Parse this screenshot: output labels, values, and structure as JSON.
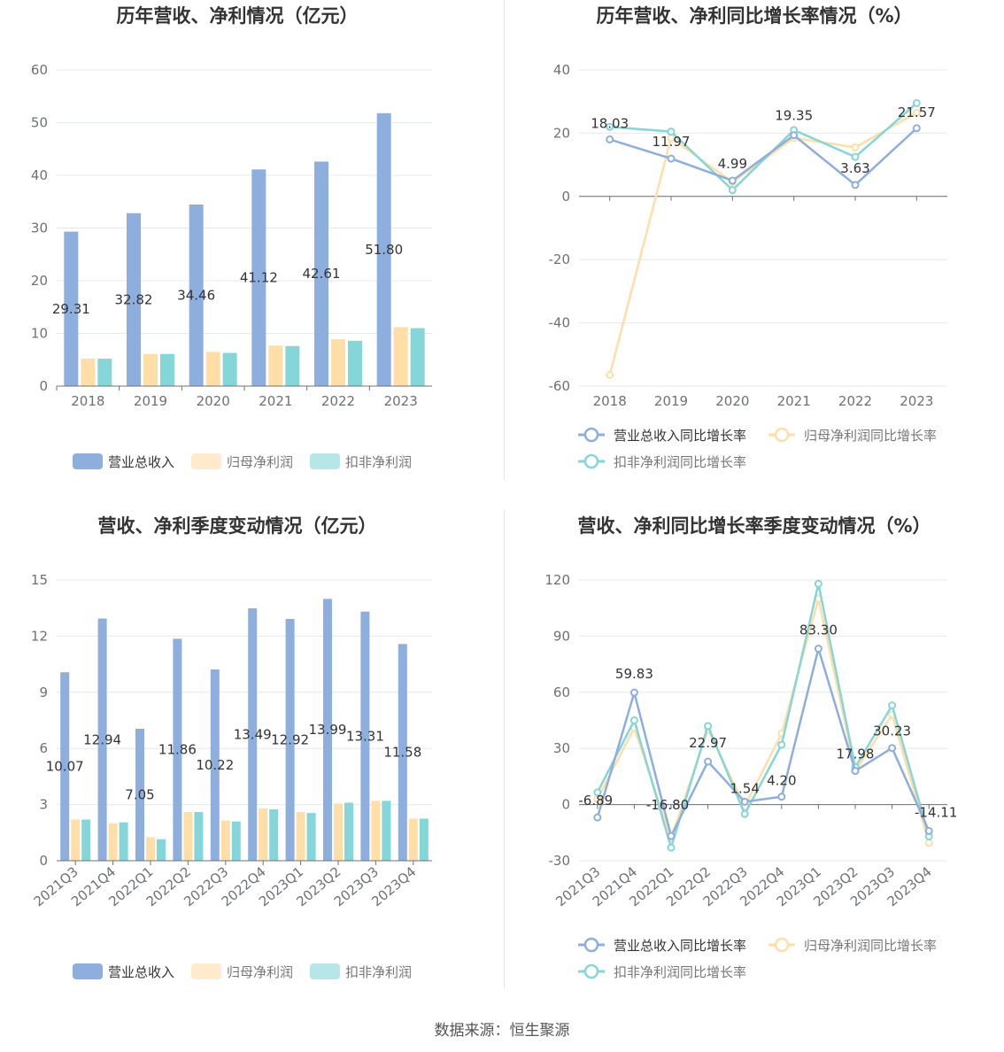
{
  "colors": {
    "revenue": "#8eaedd",
    "net_profit": "#ffdea8",
    "deducted_profit": "#85d6d8",
    "grid": "#e4e8f0",
    "axis": "#6e7079"
  },
  "source": "数据来源：恒生聚源",
  "chart_data": [
    {
      "type": "bar",
      "title": "历年营收、净利情况（亿元）",
      "categories": [
        "2018",
        "2019",
        "2020",
        "2021",
        "2022",
        "2023"
      ],
      "ylim": [
        0,
        60
      ],
      "yticks": [
        "0",
        "10",
        "20",
        "30",
        "40",
        "50",
        "60"
      ],
      "series": [
        {
          "name": "营业总收入",
          "values": [
            29.31,
            32.82,
            34.46,
            41.12,
            42.61,
            51.8
          ],
          "labels": [
            "29.31",
            "32.82",
            "34.46",
            "41.12",
            "42.61",
            "51.80"
          ]
        },
        {
          "name": "归母净利润",
          "values": [
            5.2,
            6.1,
            6.5,
            7.7,
            8.9,
            11.2
          ]
        },
        {
          "name": "扣非净利润",
          "values": [
            5.2,
            6.1,
            6.3,
            7.6,
            8.6,
            11.0
          ]
        }
      ],
      "legend": "bottom"
    },
    {
      "type": "line",
      "title": "历年营收、净利同比增长率情况（%）",
      "categories": [
        "2018",
        "2019",
        "2020",
        "2021",
        "2022",
        "2023"
      ],
      "ylim": [
        -60,
        40
      ],
      "yticks": [
        "-60",
        "-40",
        "-20",
        "0",
        "20",
        "40"
      ],
      "series": [
        {
          "name": "营业总收入同比增长率",
          "values": [
            18.03,
            11.97,
            4.99,
            19.35,
            3.63,
            21.57
          ],
          "labels": [
            "18.03",
            "11.97",
            "4.99",
            "19.35",
            "3.63",
            "21.57"
          ]
        },
        {
          "name": "归母净利润同比增长率",
          "values": [
            -56.5,
            18.5,
            4.5,
            18.5,
            15.5,
            26.5
          ]
        },
        {
          "name": "扣非净利润同比增长率",
          "values": [
            22.0,
            20.5,
            2.0,
            21.0,
            12.5,
            29.5
          ]
        }
      ],
      "legend": "bottom"
    },
    {
      "type": "bar",
      "title": "营收、净利季度变动情况（亿元）",
      "categories": [
        "2021Q3",
        "2021Q4",
        "2022Q1",
        "2022Q2",
        "2022Q3",
        "2022Q4",
        "2023Q1",
        "2023Q2",
        "2023Q3",
        "2023Q4"
      ],
      "ylim": [
        0,
        15
      ],
      "yticks": [
        "0",
        "3",
        "6",
        "9",
        "12",
        "15"
      ],
      "series": [
        {
          "name": "营业总收入",
          "values": [
            10.07,
            12.94,
            7.05,
            11.86,
            10.22,
            13.49,
            12.92,
            13.99,
            13.31,
            11.58
          ],
          "labels": [
            "10.07",
            "12.94",
            "7.05",
            "11.86",
            "10.22",
            "13.49",
            "12.92",
            "13.99",
            "13.31",
            "11.58"
          ]
        },
        {
          "name": "归母净利润",
          "values": [
            2.2,
            2.0,
            1.25,
            2.6,
            2.15,
            2.8,
            2.6,
            3.05,
            3.2,
            2.25
          ]
        },
        {
          "name": "扣非净利润",
          "values": [
            2.2,
            2.05,
            1.15,
            2.6,
            2.1,
            2.75,
            2.55,
            3.1,
            3.2,
            2.25
          ]
        }
      ],
      "legend": "bottom"
    },
    {
      "type": "line",
      "title": "营收、净利同比增长率季度变动情况（%）",
      "categories": [
        "2021Q3",
        "2021Q4",
        "2022Q1",
        "2022Q2",
        "2022Q3",
        "2022Q4",
        "2023Q1",
        "2023Q2",
        "2023Q3",
        "2023Q4"
      ],
      "ylim": [
        -30,
        120
      ],
      "yticks": [
        "-30",
        "0",
        "30",
        "60",
        "90",
        "120"
      ],
      "series": [
        {
          "name": "营业总收入同比增长率",
          "values": [
            -6.89,
            59.83,
            -16.8,
            22.97,
            1.54,
            4.2,
            83.3,
            17.98,
            30.23,
            -14.11
          ],
          "labels": [
            "-6.89",
            "59.83",
            "-16.80",
            "22.97",
            "1.54",
            "4.20",
            "83.30",
            "17.98",
            "30.23",
            "-14.11"
          ]
        },
        {
          "name": "归母净利润同比增长率",
          "values": [
            3.0,
            41.0,
            -18.0,
            40.0,
            -1.0,
            38.0,
            110.0,
            18.0,
            48.0,
            -20.5
          ]
        },
        {
          "name": "扣非净利润同比增长率",
          "values": [
            6.5,
            45.0,
            -23.0,
            42.0,
            -5.0,
            32.0,
            118.0,
            20.0,
            53.0,
            -17.0
          ]
        }
      ],
      "legend": "bottom"
    }
  ]
}
